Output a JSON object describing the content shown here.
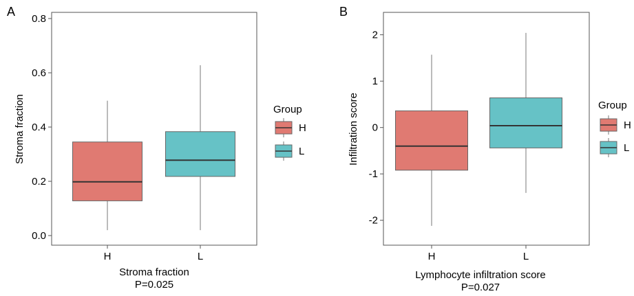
{
  "colors": {
    "H": "#E07A72",
    "L": "#66C2C6",
    "median": "#333333",
    "whisker": "#777777",
    "frame": "#555555"
  },
  "chart_data": [
    {
      "type": "boxplot",
      "panel_label": "A",
      "title": "Stroma fraction",
      "subtitle": "P=0.025",
      "xlabel": "",
      "ylabel": "Stroma fraction",
      "ylim": [
        0,
        0.8
      ],
      "y_ticks": [
        "0.0",
        "0.2",
        "0.4",
        "0.6",
        "0.8"
      ],
      "categories": [
        "H",
        "L"
      ],
      "boxes": [
        {
          "group": "H",
          "min": 0.02,
          "q1": 0.128,
          "median": 0.198,
          "q3": 0.345,
          "max": 0.497
        },
        {
          "group": "L",
          "min": 0.02,
          "q1": 0.218,
          "median": 0.278,
          "q3": 0.383,
          "max": 0.628
        }
      ],
      "legend_title": "Group",
      "legend": [
        "H",
        "L"
      ]
    },
    {
      "type": "boxplot",
      "panel_label": "B",
      "title": "Lymphocyte infiltration score",
      "subtitle": "P=0.027",
      "xlabel": "",
      "ylabel": "Infiltration score",
      "ylim": [
        -2.3,
        2.35
      ],
      "y_ticks": [
        "-2",
        "-1",
        "0",
        "1",
        "2"
      ],
      "categories": [
        "H",
        "L"
      ],
      "boxes": [
        {
          "group": "H",
          "min": -2.12,
          "q1": -0.92,
          "median": -0.4,
          "q3": 0.36,
          "max": 1.57
        },
        {
          "group": "L",
          "min": -1.41,
          "q1": -0.44,
          "median": 0.04,
          "q3": 0.64,
          "max": 2.04
        }
      ],
      "legend_title": "Group",
      "legend": [
        "H",
        "L"
      ]
    }
  ]
}
